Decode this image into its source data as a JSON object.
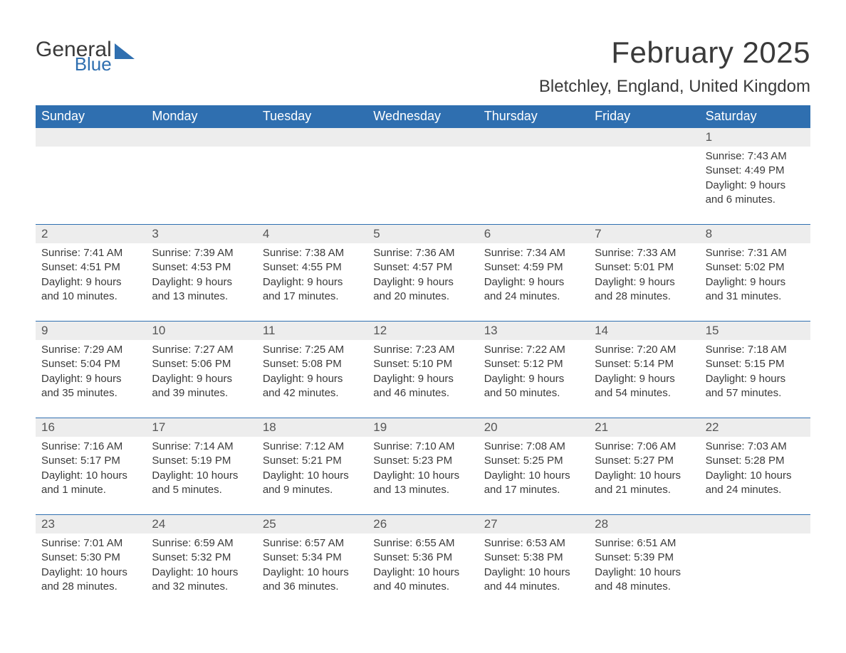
{
  "logo": {
    "general": "General",
    "blue": "Blue",
    "shape_color": "#2f6fb0"
  },
  "title": "February 2025",
  "location": "Bletchley, England, United Kingdom",
  "colors": {
    "header_bg": "#2f6fb0",
    "header_text": "#ffffff",
    "daynum_bg": "#ededed",
    "body_text": "#3a3a3a",
    "divider": "#2f6fb0",
    "page_bg": "#ffffff"
  },
  "day_headers": [
    "Sunday",
    "Monday",
    "Tuesday",
    "Wednesday",
    "Thursday",
    "Friday",
    "Saturday"
  ],
  "grid_columns": 7,
  "weeks": [
    {
      "cells": [
        {
          "empty": true
        },
        {
          "empty": true
        },
        {
          "empty": true
        },
        {
          "empty": true
        },
        {
          "empty": true
        },
        {
          "empty": true
        },
        {
          "day": "1",
          "sunrise": "Sunrise: 7:43 AM",
          "sunset": "Sunset: 4:49 PM",
          "daylight": "Daylight: 9 hours and 6 minutes."
        }
      ]
    },
    {
      "cells": [
        {
          "day": "2",
          "sunrise": "Sunrise: 7:41 AM",
          "sunset": "Sunset: 4:51 PM",
          "daylight": "Daylight: 9 hours and 10 minutes."
        },
        {
          "day": "3",
          "sunrise": "Sunrise: 7:39 AM",
          "sunset": "Sunset: 4:53 PM",
          "daylight": "Daylight: 9 hours and 13 minutes."
        },
        {
          "day": "4",
          "sunrise": "Sunrise: 7:38 AM",
          "sunset": "Sunset: 4:55 PM",
          "daylight": "Daylight: 9 hours and 17 minutes."
        },
        {
          "day": "5",
          "sunrise": "Sunrise: 7:36 AM",
          "sunset": "Sunset: 4:57 PM",
          "daylight": "Daylight: 9 hours and 20 minutes."
        },
        {
          "day": "6",
          "sunrise": "Sunrise: 7:34 AM",
          "sunset": "Sunset: 4:59 PM",
          "daylight": "Daylight: 9 hours and 24 minutes."
        },
        {
          "day": "7",
          "sunrise": "Sunrise: 7:33 AM",
          "sunset": "Sunset: 5:01 PM",
          "daylight": "Daylight: 9 hours and 28 minutes."
        },
        {
          "day": "8",
          "sunrise": "Sunrise: 7:31 AM",
          "sunset": "Sunset: 5:02 PM",
          "daylight": "Daylight: 9 hours and 31 minutes."
        }
      ]
    },
    {
      "cells": [
        {
          "day": "9",
          "sunrise": "Sunrise: 7:29 AM",
          "sunset": "Sunset: 5:04 PM",
          "daylight": "Daylight: 9 hours and 35 minutes."
        },
        {
          "day": "10",
          "sunrise": "Sunrise: 7:27 AM",
          "sunset": "Sunset: 5:06 PM",
          "daylight": "Daylight: 9 hours and 39 minutes."
        },
        {
          "day": "11",
          "sunrise": "Sunrise: 7:25 AM",
          "sunset": "Sunset: 5:08 PM",
          "daylight": "Daylight: 9 hours and 42 minutes."
        },
        {
          "day": "12",
          "sunrise": "Sunrise: 7:23 AM",
          "sunset": "Sunset: 5:10 PM",
          "daylight": "Daylight: 9 hours and 46 minutes."
        },
        {
          "day": "13",
          "sunrise": "Sunrise: 7:22 AM",
          "sunset": "Sunset: 5:12 PM",
          "daylight": "Daylight: 9 hours and 50 minutes."
        },
        {
          "day": "14",
          "sunrise": "Sunrise: 7:20 AM",
          "sunset": "Sunset: 5:14 PM",
          "daylight": "Daylight: 9 hours and 54 minutes."
        },
        {
          "day": "15",
          "sunrise": "Sunrise: 7:18 AM",
          "sunset": "Sunset: 5:15 PM",
          "daylight": "Daylight: 9 hours and 57 minutes."
        }
      ]
    },
    {
      "cells": [
        {
          "day": "16",
          "sunrise": "Sunrise: 7:16 AM",
          "sunset": "Sunset: 5:17 PM",
          "daylight": "Daylight: 10 hours and 1 minute."
        },
        {
          "day": "17",
          "sunrise": "Sunrise: 7:14 AM",
          "sunset": "Sunset: 5:19 PM",
          "daylight": "Daylight: 10 hours and 5 minutes."
        },
        {
          "day": "18",
          "sunrise": "Sunrise: 7:12 AM",
          "sunset": "Sunset: 5:21 PM",
          "daylight": "Daylight: 10 hours and 9 minutes."
        },
        {
          "day": "19",
          "sunrise": "Sunrise: 7:10 AM",
          "sunset": "Sunset: 5:23 PM",
          "daylight": "Daylight: 10 hours and 13 minutes."
        },
        {
          "day": "20",
          "sunrise": "Sunrise: 7:08 AM",
          "sunset": "Sunset: 5:25 PM",
          "daylight": "Daylight: 10 hours and 17 minutes."
        },
        {
          "day": "21",
          "sunrise": "Sunrise: 7:06 AM",
          "sunset": "Sunset: 5:27 PM",
          "daylight": "Daylight: 10 hours and 21 minutes."
        },
        {
          "day": "22",
          "sunrise": "Sunrise: 7:03 AM",
          "sunset": "Sunset: 5:28 PM",
          "daylight": "Daylight: 10 hours and 24 minutes."
        }
      ]
    },
    {
      "cells": [
        {
          "day": "23",
          "sunrise": "Sunrise: 7:01 AM",
          "sunset": "Sunset: 5:30 PM",
          "daylight": "Daylight: 10 hours and 28 minutes."
        },
        {
          "day": "24",
          "sunrise": "Sunrise: 6:59 AM",
          "sunset": "Sunset: 5:32 PM",
          "daylight": "Daylight: 10 hours and 32 minutes."
        },
        {
          "day": "25",
          "sunrise": "Sunrise: 6:57 AM",
          "sunset": "Sunset: 5:34 PM",
          "daylight": "Daylight: 10 hours and 36 minutes."
        },
        {
          "day": "26",
          "sunrise": "Sunrise: 6:55 AM",
          "sunset": "Sunset: 5:36 PM",
          "daylight": "Daylight: 10 hours and 40 minutes."
        },
        {
          "day": "27",
          "sunrise": "Sunrise: 6:53 AM",
          "sunset": "Sunset: 5:38 PM",
          "daylight": "Daylight: 10 hours and 44 minutes."
        },
        {
          "day": "28",
          "sunrise": "Sunrise: 6:51 AM",
          "sunset": "Sunset: 5:39 PM",
          "daylight": "Daylight: 10 hours and 48 minutes."
        },
        {
          "empty": true
        }
      ]
    }
  ]
}
